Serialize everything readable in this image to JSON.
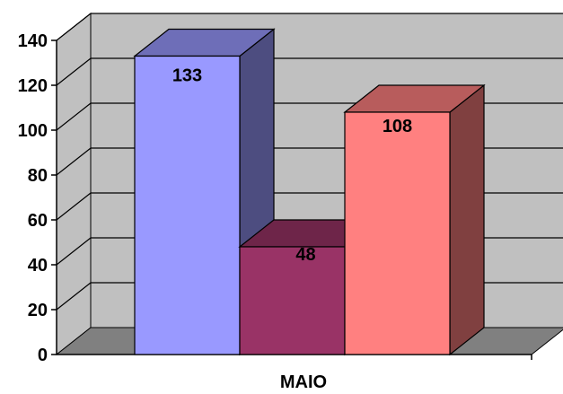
{
  "chart_data": {
    "type": "bar",
    "style": "3d-clustered-column",
    "categories": [
      "MAIO"
    ],
    "series": [
      {
        "values": [
          133
        ],
        "color": "#9999FF"
      },
      {
        "values": [
          48
        ],
        "color": "#993366"
      },
      {
        "values": [
          108
        ],
        "color": "#FF8080"
      }
    ],
    "data_labels": [
      "133",
      "48",
      "108"
    ],
    "ylim": [
      0,
      140
    ],
    "y_ticks": [
      "0",
      "20",
      "40",
      "60",
      "80",
      "100",
      "120",
      "140"
    ],
    "grid": true,
    "legend": "none",
    "colors": {
      "back_wall": "#C0C0C0",
      "floor": "#808080",
      "gridline": "#000000"
    }
  }
}
